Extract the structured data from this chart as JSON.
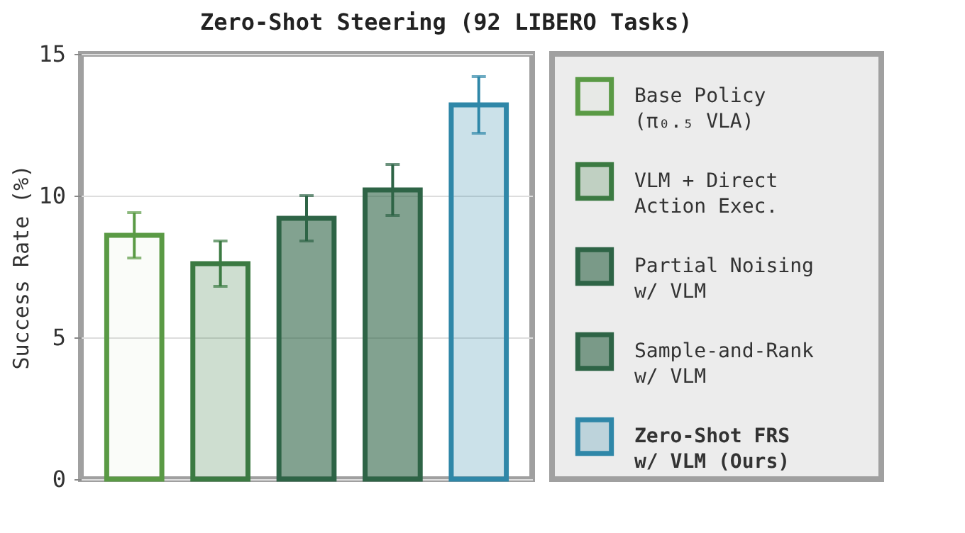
{
  "chart_data": {
    "type": "bar",
    "title": "Zero-Shot Steering (92 LIBERO Tasks)",
    "ylabel": "Success Rate (%)",
    "categories": [
      null,
      null,
      null,
      null,
      null
    ],
    "series": [
      {
        "name": "Base Policy\n(π₀.₅ VLA)",
        "color": "#5a9a45",
        "values": [
          8.6,
          null,
          null,
          null,
          null
        ],
        "errors": [
          0.8,
          null,
          null,
          null,
          null
        ]
      },
      {
        "name": "VLM + Direct\nAction Exec.",
        "color": "#3b7a42",
        "values": [
          null,
          7.6,
          null,
          null,
          null
        ],
        "errors": [
          null,
          0.8,
          null,
          null,
          null
        ]
      },
      {
        "name": "Partial Noising\nw/ VLM",
        "color": "#2e6446",
        "values": [
          null,
          null,
          9.2,
          null,
          null
        ],
        "errors": [
          null,
          null,
          0.8,
          null,
          null
        ]
      },
      {
        "name": "Sample-and-Rank\nw/ VLM",
        "color": "#2e6446",
        "values": [
          null,
          null,
          null,
          10.2,
          null
        ],
        "errors": [
          null,
          null,
          null,
          0.9,
          null
        ]
      },
      {
        "name": "Zero-Shot FRS\nw/ VLM (Ours)",
        "color": "#2f87a8",
        "values": [
          null,
          null,
          null,
          null,
          13.2
        ],
        "errors": [
          null,
          null,
          null,
          null,
          1.0
        ]
      }
    ],
    "ylim": [
      0,
      15
    ],
    "yticks": [
      0,
      5,
      10,
      15
    ],
    "grid": "y",
    "legend": "right",
    "tick_labels": "y"
  }
}
